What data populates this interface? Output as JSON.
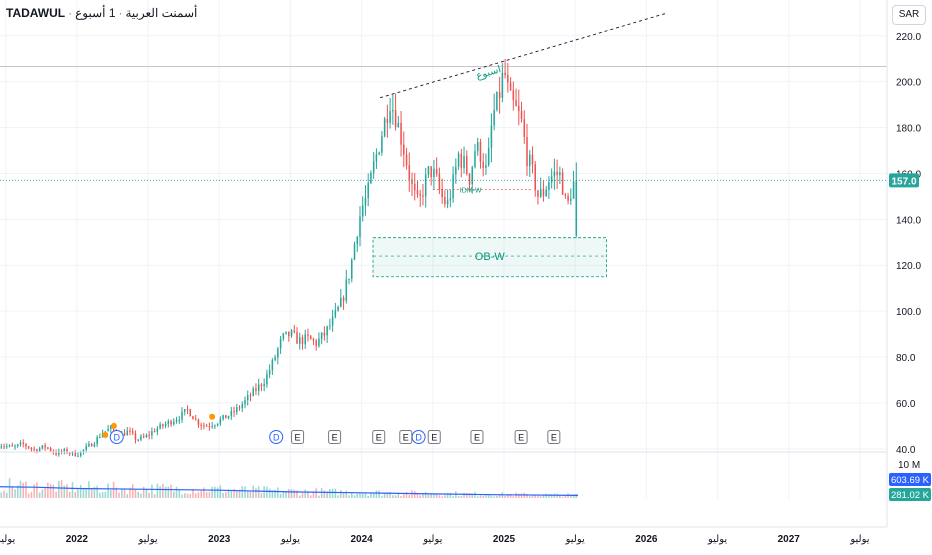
{
  "header": {
    "symbol": "TADAWUL",
    "name": "أسمنت العربية",
    "interval": "1 أسبوع"
  },
  "currency_button": "SAR",
  "chart_data": {
    "type": "candlestick",
    "colors": {
      "up": "#26a69a",
      "down": "#ef5350",
      "volume_ma": "#2962ff",
      "annotation": "#089981",
      "grid": "#f0f3fa"
    },
    "y_axis": {
      "ticks": [
        40.0,
        60.0,
        80.0,
        100.0,
        120.0,
        140.0,
        160.0,
        180.0,
        200.0,
        220.0
      ],
      "labels": [
        "40.0",
        "60.0",
        "80.0",
        "100.0",
        "120.0",
        "140.0",
        "160.0",
        "180.0",
        "200.0",
        "220.0"
      ],
      "ylim": [
        36,
        226
      ]
    },
    "x_axis": {
      "labels": [
        "يوليو",
        "2022",
        "يوليو",
        "2023",
        "يوليو",
        "2024",
        "يوليو",
        "2025",
        "يوليو",
        "2026",
        "يوليو",
        "2027",
        "يوليو"
      ],
      "label_dates": [
        2021.5,
        2022.0,
        2022.5,
        2023.0,
        2023.5,
        2024.0,
        2024.5,
        2025.0,
        2025.5,
        2026.0,
        2026.5,
        2027.0,
        2027.5
      ],
      "range": [
        2021.46,
        2027.69
      ]
    },
    "ohlc_path": [
      [
        2021.45,
        42
      ],
      [
        2021.55,
        40.5
      ],
      [
        2021.62,
        42
      ],
      [
        2021.7,
        39.5
      ],
      [
        2021.78,
        41
      ],
      [
        2021.85,
        38
      ],
      [
        2021.92,
        39
      ],
      [
        2022.0,
        37.5
      ],
      [
        2022.06,
        40
      ],
      [
        2022.12,
        43
      ],
      [
        2022.18,
        47
      ],
      [
        2022.24,
        49
      ],
      [
        2022.3,
        46
      ],
      [
        2022.36,
        47.5
      ],
      [
        2022.42,
        44
      ],
      [
        2022.48,
        45
      ],
      [
        2022.54,
        48
      ],
      [
        2022.6,
        50
      ],
      [
        2022.66,
        52
      ],
      [
        2022.72,
        54
      ],
      [
        2022.78,
        57
      ],
      [
        2022.84,
        52
      ],
      [
        2022.9,
        50
      ],
      [
        2022.96,
        51
      ],
      [
        2023.02,
        53
      ],
      [
        2023.08,
        55
      ],
      [
        2023.14,
        58
      ],
      [
        2023.2,
        62
      ],
      [
        2023.26,
        66
      ],
      [
        2023.32,
        70
      ],
      [
        2023.38,
        78
      ],
      [
        2023.44,
        88
      ],
      [
        2023.5,
        90
      ],
      [
        2023.56,
        87
      ],
      [
        2023.62,
        88
      ],
      [
        2023.68,
        86
      ],
      [
        2023.74,
        90
      ],
      [
        2023.8,
        96
      ],
      [
        2023.86,
        104
      ],
      [
        2023.92,
        118
      ],
      [
        2023.96,
        133
      ],
      [
        2024.0,
        145
      ],
      [
        2024.04,
        150
      ],
      [
        2024.08,
        162
      ],
      [
        2024.12,
        172
      ],
      [
        2024.16,
        182
      ],
      [
        2024.2,
        192
      ],
      [
        2024.24,
        185
      ],
      [
        2024.28,
        175
      ],
      [
        2024.32,
        164
      ],
      [
        2024.36,
        152
      ],
      [
        2024.4,
        146
      ],
      [
        2024.44,
        155
      ],
      [
        2024.48,
        162
      ],
      [
        2024.52,
        158
      ],
      [
        2024.56,
        150
      ],
      [
        2024.6,
        146
      ],
      [
        2024.64,
        155
      ],
      [
        2024.68,
        168
      ],
      [
        2024.72,
        164
      ],
      [
        2024.76,
        158
      ],
      [
        2024.8,
        172
      ],
      [
        2024.84,
        168
      ],
      [
        2024.88,
        160
      ],
      [
        2024.92,
        185
      ],
      [
        2024.96,
        192
      ],
      [
        2025.0,
        205
      ],
      [
        2025.04,
        192
      ],
      [
        2025.08,
        188
      ],
      [
        2025.12,
        183
      ],
      [
        2025.16,
        168
      ],
      [
        2025.2,
        160
      ],
      [
        2025.24,
        150
      ],
      [
        2025.28,
        152
      ],
      [
        2025.32,
        158
      ],
      [
        2025.36,
        160
      ],
      [
        2025.4,
        159
      ],
      [
        2025.44,
        144
      ],
      [
        2025.48,
        155
      ],
      [
        2025.52,
        157
      ]
    ],
    "volume_ma": [
      [
        2021.45,
        2.6
      ],
      [
        2021.7,
        2.5
      ],
      [
        2022.0,
        2.2
      ],
      [
        2022.5,
        2.0
      ],
      [
        2023.0,
        1.8
      ],
      [
        2023.5,
        1.4
      ],
      [
        2024.0,
        1.2
      ],
      [
        2024.5,
        0.95
      ],
      [
        2025.0,
        0.75
      ],
      [
        2025.52,
        0.6
      ]
    ],
    "last_price": 157.0,
    "last_price_label": "157.0",
    "volume_axis_label": "10 M",
    "volume_last_label": "603.69 K",
    "volume_ma_label": "281.02 K",
    "levels": {
      "horizontal_high": 206.6,
      "trendline": {
        "start": [
          2024.13,
          193
        ],
        "end": [
          2026.15,
          230
        ]
      },
      "trendline_label": "اسبوع",
      "ob_zone": {
        "x_start": 2024.08,
        "x_end": 2025.72,
        "top": 132,
        "bottom": 115,
        "mid": 124
      },
      "ob_label": "OB-W",
      "idm_level": {
        "x_start": 2024.5,
        "x_end": 2025.2,
        "price": 153
      },
      "idm_label": "IDM-W"
    },
    "event_markers": [
      {
        "date": 2022.28,
        "label": "D",
        "type": "dividend"
      },
      {
        "date": 2023.4,
        "label": "D",
        "type": "dividend"
      },
      {
        "date": 2023.55,
        "label": "E",
        "type": "earnings"
      },
      {
        "date": 2023.81,
        "label": "E",
        "type": "earnings"
      },
      {
        "date": 2024.12,
        "label": "E",
        "type": "earnings"
      },
      {
        "date": 2024.31,
        "label": "E",
        "type": "earnings"
      },
      {
        "date": 2024.4,
        "label": "D",
        "type": "dividend"
      },
      {
        "date": 2024.51,
        "label": "E",
        "type": "earnings"
      },
      {
        "date": 2024.81,
        "label": "E",
        "type": "earnings"
      },
      {
        "date": 2025.12,
        "label": "E",
        "type": "earnings"
      },
      {
        "date": 2025.35,
        "label": "E",
        "type": "earnings"
      }
    ],
    "orange_dots": [
      {
        "date": 2022.2,
        "price": 46
      },
      {
        "date": 2022.26,
        "price": 50
      },
      {
        "date": 2022.95,
        "price": 54
      }
    ]
  }
}
